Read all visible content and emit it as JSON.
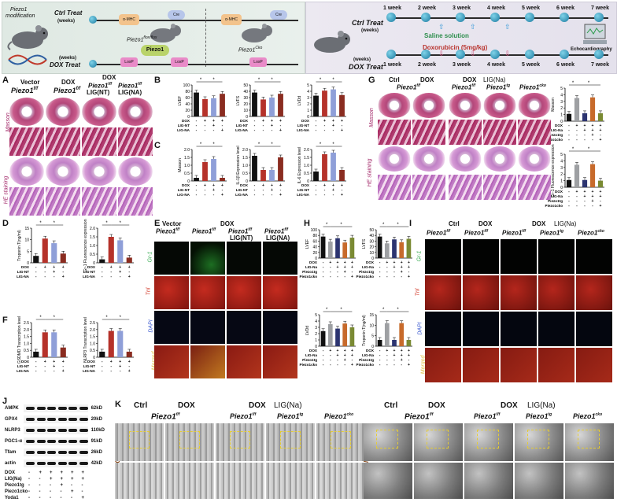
{
  "schematic_left": {
    "mouse_label_line1": "Piezo1",
    "mouse_label_line2": "modification",
    "ctrl_treat": "Ctrl Treat",
    "ctrl_weeks": "(weeks)",
    "dox_weeks": "(weeks)",
    "dox_treat": "DOX Treat",
    "amhc": "α-MHC",
    "cre": "Cre",
    "flox_main": "Piezo1",
    "flox_sup": "flox/flox",
    "cko_main": "Piezo1",
    "cko_sup": "Cko",
    "piezo_pill": "Piezo1",
    "loxp": "LoxP"
  },
  "schematic_right": {
    "weeks_top": [
      "1 week",
      "2 week",
      "3 week",
      "4 week",
      "5 week",
      "6 week",
      "7 week"
    ],
    "weeks_bottom": [
      "1 week",
      "2 week",
      "3 week",
      "4 week",
      "5 week",
      "6 week",
      "7 week"
    ],
    "ctrl_treat": "Ctrl Treat",
    "dox_treat": "DOX Treat",
    "weeks": "(weeks)",
    "saline": "Saline solution",
    "doxo": "Doxorubicin (5mg/kg)",
    "echo": "Echocardiography"
  },
  "panelA": {
    "letter": "A",
    "col1_top": "Vector",
    "col2_top": "DOX",
    "col3_top": "DOX",
    "g1": "Piezo1",
    "g1sup": "f/f",
    "g2": "Piezo1",
    "g2sup": "f/f",
    "g3": "Piezo1",
    "g3sup": "f/f",
    "g3b": "LIG(NT)",
    "g4": "Piezo1",
    "g4sup": "f/f",
    "g4b": "LIG(NA)",
    "row_masson": "Masson",
    "row_he": "HE staining"
  },
  "panelB": {
    "letter": "B",
    "charts": [
      {
        "ylabel": "LVEF",
        "ylim": [
          0,
          100
        ],
        "yticks": [
          "100",
          "80",
          "60",
          "40",
          "20",
          "0"
        ],
        "values": [
          76,
          55,
          58,
          72
        ],
        "stars": [
          "*",
          "*"
        ]
      },
      {
        "ylabel": "LVFS",
        "ylim": [
          0,
          50
        ],
        "yticks": [
          "50",
          "40",
          "30",
          "20",
          "10",
          "0"
        ],
        "values": [
          38,
          27,
          30,
          36
        ],
        "stars": [
          "*",
          "*"
        ]
      },
      {
        "ylabel": "LVDd",
        "ylim": [
          0,
          5
        ],
        "yticks": [
          "5",
          "4",
          "3",
          "2",
          "1",
          "0"
        ],
        "values": [
          3.3,
          4.1,
          4.3,
          3.4
        ],
        "stars": [
          "*",
          "*"
        ]
      }
    ]
  },
  "panelC": {
    "letter": "C",
    "charts": [
      {
        "ylabel": "Masson",
        "ylim": [
          0,
          2.0
        ],
        "yticks": [
          "2.0",
          "1.5",
          "1.0",
          "0.5",
          "0"
        ],
        "values": [
          0.2,
          1.2,
          1.4,
          0.2
        ],
        "stars": [
          "*",
          "*"
        ]
      },
      {
        "ylabel": "IL-1β Expression level",
        "ylim": [
          0,
          2.0
        ],
        "yticks": [
          "2.0",
          "1.5",
          "1.0",
          "0.5",
          "0"
        ],
        "values": [
          1.6,
          0.7,
          0.7,
          1.5
        ],
        "stars": [
          "*",
          "*"
        ]
      },
      {
        "ylabel": "IL-6 Expression level",
        "ylim": [
          0,
          2.0
        ],
        "yticks": [
          "2.0",
          "1.5",
          "1.0",
          "0.5",
          "0"
        ],
        "values": [
          0.6,
          1.7,
          1.8,
          0.7
        ],
        "stars": [
          "*",
          "*"
        ]
      }
    ]
  },
  "panelD": {
    "letter": "D",
    "charts": [
      {
        "ylabel": "Troponin T(ng/ml)",
        "ylim": [
          0,
          15
        ],
        "yticks": [
          "15",
          "10",
          "5",
          "0"
        ],
        "values": [
          3,
          10.5,
          8.5,
          4
        ],
        "stars": [
          "*",
          "*"
        ]
      },
      {
        "ylabel": "Gr-1 Fluorescence expression",
        "ylim": [
          0,
          2.0
        ],
        "yticks": [
          "2.0",
          "1.5",
          "1.0",
          "0.5",
          "0"
        ],
        "values": [
          0.2,
          1.5,
          1.3,
          0.3
        ],
        "stars": [
          "*",
          "*"
        ]
      }
    ]
  },
  "panelF": {
    "letter": "F",
    "charts": [
      {
        "ylabel": "GSDMD Transcription level",
        "ylim": [
          0,
          2.5
        ],
        "yticks": [
          "2.5",
          "2.0",
          "1.5",
          "1.0",
          "0.5",
          "0"
        ],
        "values": [
          0.4,
          1.8,
          1.8,
          0.7
        ],
        "stars": [
          "*",
          "*"
        ]
      },
      {
        "ylabel": "NLRP3 Transcription level",
        "ylim": [
          0,
          2.5
        ],
        "yticks": [
          "2.5",
          "2.0",
          "1.5",
          "1.0",
          "0.5",
          "0"
        ],
        "values": [
          0.4,
          1.9,
          1.9,
          0.4
        ],
        "stars": [
          "*",
          "*"
        ]
      }
    ]
  },
  "group_rows_4": {
    "rows": [
      "DOX",
      "LIG-NT",
      "LIG-NA"
    ],
    "signs": [
      [
        "-",
        "+",
        "+",
        "+"
      ],
      [
        "-",
        "-",
        "+",
        "-"
      ],
      [
        "-",
        "-",
        "-",
        "+"
      ]
    ]
  },
  "panelE": {
    "letter": "E",
    "h_vector": "Vector",
    "h_dox": "DOX",
    "cols": [
      {
        "g": "Piezo1",
        "sup": "f/f",
        "sub": ""
      },
      {
        "g": "Piezo1",
        "sup": "f/f",
        "sub": ""
      },
      {
        "g": "Piezo1",
        "sup": "f/f",
        "sub": "LIG(NT)"
      },
      {
        "g": "Piezo1",
        "sup": "f/f",
        "sub": "LIG(NA)"
      }
    ],
    "rows": [
      "Gr-1",
      "Tnl",
      "DAPI",
      "Merged"
    ]
  },
  "panelG": {
    "letter": "G",
    "ctrl": "Ctrl",
    "dox": "DOX",
    "dox2": "DOX",
    "lig": "LIG(Na)",
    "cols": [
      {
        "g": "Piezo1",
        "sup": "f/f"
      },
      {
        "g": "Piezo1",
        "sup": "f/f"
      },
      {
        "g": "Piezo1",
        "sup": "tg"
      },
      {
        "g": "Piezo1",
        "sup": "cko"
      }
    ],
    "row_masson": "Masson",
    "row_he": "HE staining",
    "side_charts": [
      {
        "ylabel": "Masson",
        "ylim": [
          0,
          5
        ],
        "yticks": [
          "5",
          "4",
          "3",
          "2",
          "1",
          "0"
        ],
        "values": [
          1.1,
          3.5,
          1.2,
          3.6,
          1.2
        ],
        "stars": [
          "*",
          "*"
        ]
      },
      {
        "ylabel": "Gr-1 Fluorescence expression",
        "ylim": [
          0,
          5
        ],
        "yticks": [
          "5",
          "4",
          "3",
          "2",
          "1",
          "0"
        ],
        "values": [
          1.1,
          3.4,
          1.1,
          3.5,
          1.0
        ],
        "stars": [
          "*",
          "*"
        ]
      }
    ]
  },
  "group_rows_5": {
    "rows": [
      "DOX",
      "LIG-Na",
      "Piezo1tg",
      "Piezo1cko"
    ],
    "signs": [
      [
        "-",
        "+",
        "+",
        "+",
        "+"
      ],
      [
        "-",
        "-",
        "+",
        "+",
        "+"
      ],
      [
        "-",
        "-",
        "-",
        "+",
        "-"
      ],
      [
        "-",
        "-",
        "-",
        "-",
        "+"
      ]
    ]
  },
  "panelH": {
    "letter": "H",
    "charts": [
      {
        "ylabel": "LVEF",
        "ylim": [
          0,
          100
        ],
        "yticks": [
          "100",
          "80",
          "60",
          "40",
          "20",
          "0"
        ],
        "values": [
          76,
          58,
          70,
          55,
          72
        ],
        "stars": [
          "*",
          "*"
        ]
      },
      {
        "ylabel": "LVFS",
        "ylim": [
          0,
          50
        ],
        "yticks": [
          "50",
          "40",
          "30",
          "20",
          "10",
          "0"
        ],
        "values": [
          38,
          26,
          33,
          28,
          34
        ],
        "stars": [
          "*",
          "*"
        ]
      },
      {
        "ylabel": "LVDd",
        "ylim": [
          0,
          5
        ],
        "yticks": [
          "5",
          "4",
          "3",
          "2",
          "1",
          "0"
        ],
        "values": [
          2.4,
          3.5,
          2.8,
          3.6,
          3.0
        ],
        "stars": [
          "*",
          "*"
        ]
      },
      {
        "ylabel": "Troponin T(ng/ml)",
        "ylim": [
          0,
          15
        ],
        "yticks": [
          "15",
          "10",
          "5",
          "0"
        ],
        "values": [
          3,
          11,
          3,
          11,
          3
        ],
        "stars": [
          "*",
          "*"
        ]
      }
    ]
  },
  "panelI": {
    "letter": "I",
    "ctrl": "Ctrl",
    "dox": "DOX",
    "dox2": "DOX",
    "lig": "LIG(Na)",
    "cols": [
      {
        "g": "Piezo1",
        "sup": "f/f"
      },
      {
        "g": "Piezo1",
        "sup": "f/f"
      },
      {
        "g": "Piezo1",
        "sup": "f/f"
      },
      {
        "g": "Piezo1",
        "sup": "tg"
      },
      {
        "g": "Piezo1",
        "sup": "cko"
      }
    ],
    "rows": [
      "Gr-1",
      "Tnl",
      "DAPI",
      "Merged"
    ]
  },
  "panelJ": {
    "letter": "J",
    "bands": [
      {
        "name": "AMPK",
        "kda": "62kD"
      },
      {
        "name": "GPX4",
        "kda": "20kD"
      },
      {
        "name": "NLRP3",
        "kda": "110kD"
      },
      {
        "name": "PGC1-α",
        "kda": "91kD"
      },
      {
        "name": "Tfam",
        "kda": "26kD"
      },
      {
        "name": "actin",
        "kda": "42kD"
      }
    ],
    "rows": [
      "DOX",
      "LIG(Na)",
      "Piezo1tg",
      "Piezo1cko",
      "Yoda1"
    ],
    "signs": [
      [
        "-",
        "+",
        "+",
        "+",
        "+",
        "+"
      ],
      [
        "-",
        "-",
        "+",
        "+",
        "+",
        "+"
      ],
      [
        "-",
        "-",
        "-",
        "+",
        "-",
        "-"
      ],
      [
        "-",
        "-",
        "-",
        "-",
        "+",
        "-"
      ],
      [
        "-",
        "-",
        "-",
        "-",
        "-",
        "+"
      ]
    ]
  },
  "panelK": {
    "letter": "K",
    "ctrl": "Ctrl",
    "dox": "DOX",
    "dox2": "DOX",
    "lig": "LIG(Na)",
    "cols": [
      {
        "g": "Piezo1",
        "sup": "f/f"
      },
      {
        "g": "Piezo1",
        "sup": "f/f"
      },
      {
        "g": "Piezo1",
        "sup": "tg"
      },
      {
        "g": "Piezo1",
        "sup": "cko"
      }
    ],
    "tem": "TEM-Cardic"
  },
  "colors": {
    "bar1": "#111111",
    "bar2": "#b5322a",
    "bar3": "#8f9fd8",
    "bar4": "#8a2c20",
    "bar5": "#b58e3e",
    "gray": "#9ea0a3",
    "navy": "#2c3470",
    "orange": "#c76a2b",
    "olive": "#7a8a33"
  }
}
